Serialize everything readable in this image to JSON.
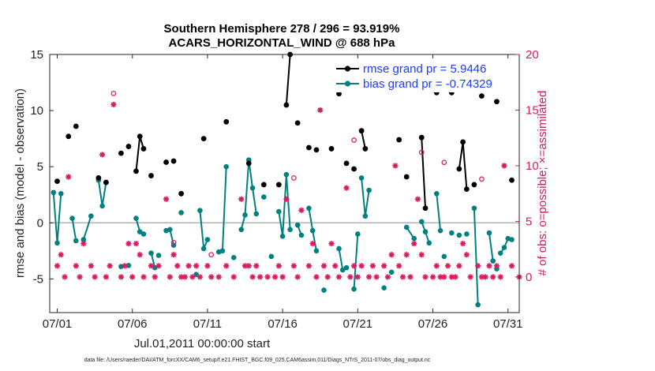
{
  "figure": {
    "title_line1": "Southern Hemisphere 278 / 296 = 93.919%",
    "title_line2": "ACARS_HORIZONTAL_WIND @ 688 hPa",
    "footer": "data file: /Users/raeder/DAI/ATM_forcXX/CAM6_setup/f.e21.FHIST_BGC.f09_025.CAM6assim.011/Diags_NTrS_2011-07/obs_diag_output.nc"
  },
  "chart_data": {
    "type": "line",
    "xlabel": "Jul.01,2011 00:00:00 start",
    "ylabel_left": "rmse and bias (model - observation)",
    "ylabel_right": "# of obs: o=possible; ×=assimilated",
    "xlim": [
      0.5,
      31.75
    ],
    "ylim_left": [
      -8,
      15
    ],
    "ylim_right": [
      -3.2,
      20
    ],
    "xticks": [
      1,
      6,
      11,
      16,
      21,
      26,
      31
    ],
    "xtick_labels": [
      "07/01",
      "07/06",
      "07/11",
      "07/16",
      "07/21",
      "07/26",
      "07/31"
    ],
    "yticks_left": [
      -5,
      0,
      5,
      10,
      15
    ],
    "yticks_right": [
      0,
      5,
      10,
      15,
      20
    ],
    "zero_line": 0,
    "legend": {
      "position": "top-right",
      "entries": [
        "rmse grand pr = 5.9446",
        "bias grand pr = -0.74329"
      ]
    },
    "colors": {
      "rmse": "#000000",
      "bias": "#008080",
      "counts": "#d81b60",
      "zero_line": "#b3b3b3"
    },
    "series": [
      {
        "name": "rmse",
        "points": [
          [
            1,
            3.7
          ],
          [
            1.75,
            7.7
          ],
          [
            2.25,
            8.6
          ],
          [
            3.75,
            4
          ],
          [
            4.25,
            3.6
          ],
          [
            5.25,
            6.2
          ],
          [
            5.75,
            6.8
          ],
          [
            6.25,
            4.6
          ],
          [
            6.5,
            7.7
          ],
          [
            6.75,
            6.6
          ],
          [
            7.25,
            4.2
          ],
          [
            8.25,
            5.4
          ],
          [
            8.75,
            5.5
          ],
          [
            9.25,
            2.6
          ],
          [
            10.75,
            7.5
          ],
          [
            12.25,
            9.0
          ],
          [
            13.75,
            5.3
          ],
          [
            14.75,
            3.4
          ],
          [
            15.75,
            3.4
          ],
          [
            16.25,
            10.5
          ],
          [
            16.5,
            15.0
          ],
          [
            17,
            8.9
          ],
          [
            17.75,
            6.7
          ],
          [
            18.25,
            6.5
          ],
          [
            19.25,
            6.6
          ],
          [
            19.75,
            11.5
          ],
          [
            20.25,
            5.3
          ],
          [
            20.75,
            4.8
          ],
          [
            21.25,
            8.2
          ],
          [
            21.5,
            6.6
          ],
          [
            23.75,
            7.4
          ],
          [
            24.25,
            4.1
          ],
          [
            25.25,
            7.6
          ],
          [
            25.5,
            1.3
          ],
          [
            26.25,
            11.6
          ],
          [
            27.25,
            11.6
          ],
          [
            27.75,
            4.8
          ],
          [
            28,
            7.2
          ],
          [
            28.25,
            3.0
          ],
          [
            28.75,
            3.4
          ],
          [
            29.25,
            11.3
          ],
          [
            30.25,
            10.8
          ],
          [
            31.25,
            3.8
          ]
        ],
        "connected_runs": [
          [
            6.25,
            6.5,
            6.75
          ],
          [
            16.25,
            16.5
          ],
          [
            21.25,
            21.5
          ],
          [
            25.25,
            25.5
          ],
          [
            27.75,
            28,
            28.25
          ]
        ]
      },
      {
        "name": "bias",
        "runs": [
          [
            [
              0.75,
              2.7
            ],
            [
              1,
              -1.8
            ],
            [
              1.25,
              2.6
            ]
          ],
          [
            [
              2,
              0.4
            ],
            [
              2.25,
              -1.6
            ]
          ],
          [
            [
              2.75,
              -1.5
            ],
            [
              3.25,
              0.6
            ]
          ],
          [
            [
              3.75,
              3.8
            ],
            [
              4,
              1.5
            ],
            [
              4.25,
              3.6
            ]
          ],
          [
            [
              6.25,
              0.4
            ],
            [
              6.5,
              -0.8
            ],
            [
              6.75,
              -1.0
            ]
          ],
          [
            [
              7.25,
              -2.7
            ],
            [
              7.5,
              -4.0
            ]
          ],
          [
            [
              8.25,
              -0.7
            ],
            [
              8.5,
              -0.6
            ],
            [
              8.75,
              -2.0
            ]
          ],
          [
            [
              10.5,
              1.1
            ],
            [
              10.75,
              -2.3
            ],
            [
              11,
              -1.5
            ]
          ],
          [
            [
              11.75,
              -2.6
            ],
            [
              12,
              -2.5
            ],
            [
              12.25,
              5.0
            ]
          ],
          [
            [
              13.25,
              -0.6
            ],
            [
              13.5,
              0.7
            ],
            [
              13.75,
              5.6
            ],
            [
              14,
              3.1
            ],
            [
              14.25,
              0.8
            ]
          ],
          [
            [
              15.75,
              1.0
            ],
            [
              16,
              -1.2
            ],
            [
              16.25,
              4.3
            ],
            [
              16.5,
              -0.6
            ]
          ],
          [
            [
              17,
              -0.2
            ],
            [
              17.25,
              -1.1
            ]
          ],
          [
            [
              17.75,
              1.3
            ],
            [
              18,
              -0.7
            ],
            [
              18.25,
              -2.5
            ]
          ],
          [
            [
              19.75,
              -2.3
            ],
            [
              20,
              -4.2
            ],
            [
              20.25,
              -4.0
            ]
          ],
          [
            [
              20.75,
              -5.9
            ],
            [
              21,
              -1.0
            ]
          ],
          [
            [
              21.25,
              4.0
            ],
            [
              21.5,
              0.6
            ],
            [
              21.75,
              2.9
            ]
          ],
          [
            [
              24.25,
              -0.4
            ],
            [
              24.75,
              -1.4
            ]
          ],
          [
            [
              25.25,
              0.1
            ],
            [
              25.5,
              -0.8
            ],
            [
              25.75,
              -1.8
            ]
          ],
          [
            [
              26.25,
              2.6
            ],
            [
              26.5,
              -0.7
            ]
          ],
          [
            [
              28.75,
              1.3
            ],
            [
              29,
              -7.3
            ]
          ],
          [
            [
              29.75,
              -0.9
            ],
            [
              30,
              -3.4
            ]
          ],
          [
            [
              30.5,
              -2.7
            ],
            [
              30.75,
              -2.2
            ],
            [
              31,
              -1.4
            ],
            [
              31.25,
              -1.5
            ]
          ]
        ],
        "singles": [
          [
            5.25,
            -3.9
          ],
          [
            5.75,
            -3.8
          ],
          [
            7.75,
            -2.9
          ],
          [
            9.25,
            0.9
          ],
          [
            10.25,
            -4.6
          ],
          [
            12.75,
            -3.1
          ],
          [
            14.75,
            2.3
          ],
          [
            15.25,
            -3.0
          ],
          [
            18.75,
            -6.0
          ],
          [
            22.75,
            -5.8
          ],
          [
            23.25,
            -4.4
          ],
          [
            26.75,
            -3.0
          ],
          [
            27.25,
            -0.9
          ],
          [
            27.75,
            -1.1
          ],
          [
            28.25,
            -1.0
          ],
          [
            30.25,
            -4.1
          ]
        ]
      },
      {
        "name": "possible",
        "axis": "right",
        "points": [
          [
            4.75,
            16.5
          ],
          [
            8.75,
            3.1
          ],
          [
            11.25,
            2.0
          ],
          [
            16.75,
            8.9
          ],
          [
            20.75,
            12.3
          ],
          [
            25.25,
            11.2
          ],
          [
            26.75,
            10.3
          ],
          [
            29.25,
            8.8
          ]
        ]
      },
      {
        "name": "assimilated",
        "axis": "right",
        "points": [
          [
            1,
            1
          ],
          [
            1.25,
            2
          ],
          [
            1.5,
            0
          ],
          [
            1.75,
            9
          ],
          [
            2.25,
            1
          ],
          [
            2.5,
            0
          ],
          [
            2.75,
            3
          ],
          [
            3.25,
            1
          ],
          [
            3.5,
            0
          ],
          [
            4,
            11
          ],
          [
            4.25,
            0
          ],
          [
            4.5,
            1
          ],
          [
            4.75,
            15.5
          ],
          [
            5.25,
            0
          ],
          [
            5.5,
            1
          ],
          [
            5.75,
            3
          ],
          [
            6,
            0
          ],
          [
            6.25,
            3
          ],
          [
            6.5,
            2
          ],
          [
            6.75,
            0
          ],
          [
            7.25,
            1
          ],
          [
            7.5,
            0
          ],
          [
            7.75,
            1
          ],
          [
            8.25,
            7
          ],
          [
            8.5,
            0
          ],
          [
            8.75,
            2
          ],
          [
            9,
            1
          ],
          [
            9.25,
            0
          ],
          [
            9.5,
            0
          ],
          [
            9.75,
            1
          ],
          [
            10,
            0
          ],
          [
            10.25,
            1
          ],
          [
            10.5,
            0
          ],
          [
            11,
            1
          ],
          [
            11.25,
            0
          ],
          [
            11.75,
            0
          ],
          [
            12.25,
            1
          ],
          [
            12.75,
            0
          ],
          [
            13.25,
            7
          ],
          [
            13.5,
            1
          ],
          [
            13.75,
            1
          ],
          [
            14,
            0
          ],
          [
            14.25,
            1
          ],
          [
            14.5,
            0
          ],
          [
            15,
            0
          ],
          [
            15.5,
            0
          ],
          [
            15.75,
            1
          ],
          [
            16,
            0
          ],
          [
            16.25,
            7
          ],
          [
            16.75,
            1
          ],
          [
            17,
            0
          ],
          [
            17.25,
            6
          ],
          [
            17.75,
            1
          ],
          [
            18,
            3
          ],
          [
            18.25,
            0
          ],
          [
            18.5,
            15
          ],
          [
            18.75,
            1
          ],
          [
            19,
            0
          ],
          [
            19.25,
            3
          ],
          [
            19.5,
            1
          ],
          [
            19.75,
            0
          ],
          [
            20.25,
            8
          ],
          [
            20.5,
            0
          ],
          [
            20.75,
            1
          ],
          [
            21,
            0
          ],
          [
            21.25,
            1
          ],
          [
            21.75,
            0
          ],
          [
            22,
            1
          ],
          [
            22.25,
            0
          ],
          [
            22.75,
            1
          ],
          [
            23,
            0
          ],
          [
            23.25,
            2
          ],
          [
            23.5,
            10
          ],
          [
            23.75,
            1
          ],
          [
            24,
            0
          ],
          [
            24.25,
            2
          ],
          [
            24.5,
            0
          ],
          [
            24.75,
            3
          ],
          [
            25,
            7
          ],
          [
            25.25,
            2
          ],
          [
            25.5,
            0
          ],
          [
            26,
            0
          ],
          [
            26.25,
            1
          ],
          [
            26.5,
            0
          ],
          [
            26.75,
            0
          ],
          [
            27,
            1
          ],
          [
            27.25,
            0
          ],
          [
            27.5,
            0
          ],
          [
            27.75,
            1
          ],
          [
            28,
            3
          ],
          [
            28.25,
            2
          ],
          [
            28.5,
            0
          ],
          [
            29,
            1
          ],
          [
            29.25,
            0
          ],
          [
            29.5,
            0
          ],
          [
            29.75,
            1
          ],
          [
            30,
            0
          ],
          [
            30.25,
            1
          ],
          [
            30.5,
            0
          ],
          [
            30.75,
            10
          ],
          [
            31.25,
            1
          ],
          [
            31.75,
            0
          ]
        ]
      }
    ]
  }
}
